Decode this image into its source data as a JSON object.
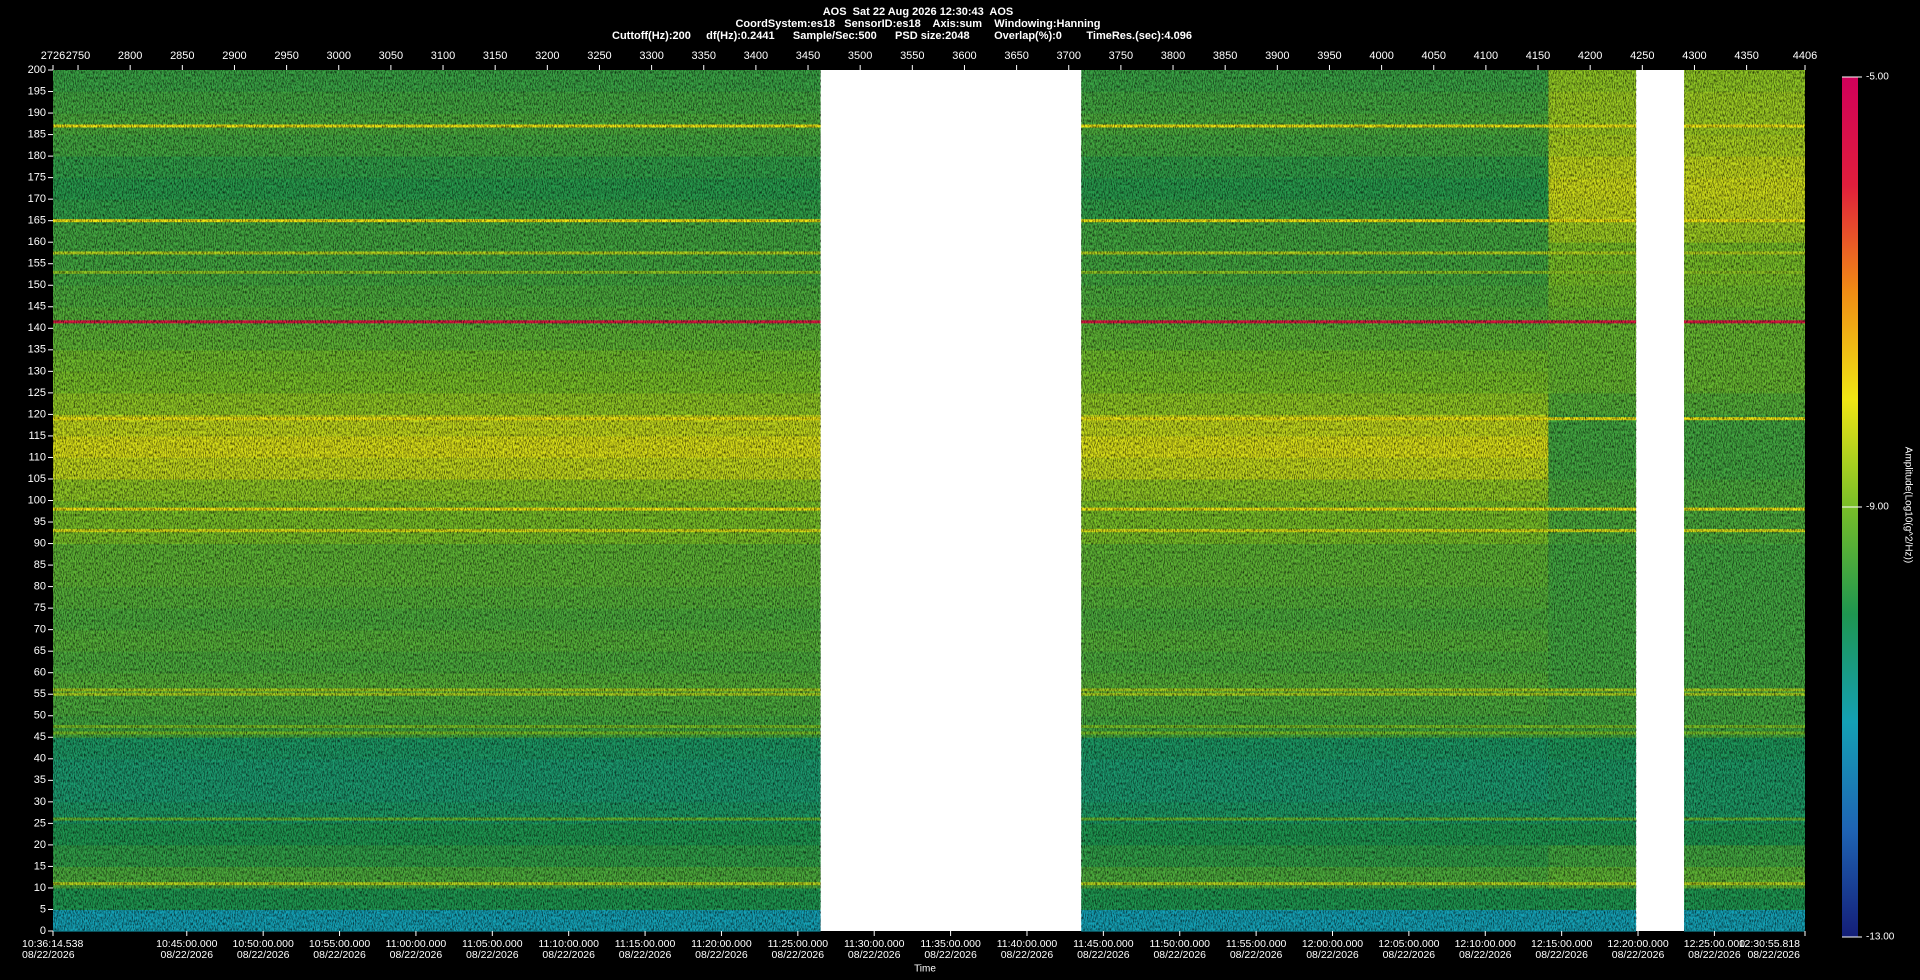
{
  "chart_data": {
    "type": "spectrogram",
    "title": "AOS  Sat 22 Aug 2026 12:30:43  AOS",
    "subtitle": "CoordSystem:es18   SensorID:es18    Axis:sum    Windowing:Hanning",
    "settings_line": "Cuttoff(Hz):200     df(Hz):0.2441      Sample/Sec:500      PSD size:2048        Overlap(%):0        TimeRes.(sec):4.096",
    "xlabel": "Time",
    "zlabel": "Amplitude(Log10(g^2/Hz))",
    "xlim": [
      2726,
      4406
    ],
    "xticks": [
      2726,
      2750,
      2800,
      2850,
      2900,
      2950,
      3000,
      3050,
      3100,
      3150,
      3200,
      3250,
      3300,
      3350,
      3400,
      3450,
      3500,
      3550,
      3600,
      3650,
      3700,
      3750,
      3800,
      3850,
      3900,
      3950,
      4000,
      4050,
      4100,
      4150,
      4200,
      4250,
      4300,
      4350,
      4406
    ],
    "x2lim": [
      "10:36:14.538",
      "12:30:55.818"
    ],
    "x2ticks": [
      {
        "time": "10:36:14.538",
        "date": "08/22/2026"
      },
      {
        "time": "10:45:00.000",
        "date": "08/22/2026"
      },
      {
        "time": "10:50:00.000",
        "date": "08/22/2026"
      },
      {
        "time": "10:55:00.000",
        "date": "08/22/2026"
      },
      {
        "time": "11:00:00.000",
        "date": "08/22/2026"
      },
      {
        "time": "11:05:00.000",
        "date": "08/22/2026"
      },
      {
        "time": "11:10:00.000",
        "date": "08/22/2026"
      },
      {
        "time": "11:15:00.000",
        "date": "08/22/2026"
      },
      {
        "time": "11:20:00.000",
        "date": "08/22/2026"
      },
      {
        "time": "11:25:00.000",
        "date": "08/22/2026"
      },
      {
        "time": "11:30:00.000",
        "date": "08/22/2026"
      },
      {
        "time": "11:35:00.000",
        "date": "08/22/2026"
      },
      {
        "time": "11:40:00.000",
        "date": "08/22/2026"
      },
      {
        "time": "11:45:00.000",
        "date": "08/22/2026"
      },
      {
        "time": "11:50:00.000",
        "date": "08/22/2026"
      },
      {
        "time": "11:55:00.000",
        "date": "08/22/2026"
      },
      {
        "time": "12:00:00.000",
        "date": "08/22/2026"
      },
      {
        "time": "12:05:00.000",
        "date": "08/22/2026"
      },
      {
        "time": "12:10:00.000",
        "date": "08/22/2026"
      },
      {
        "time": "12:15:00.000",
        "date": "08/22/2026"
      },
      {
        "time": "12:20:00.000",
        "date": "08/22/2026"
      },
      {
        "time": "12:25:00.000",
        "date": "08/22/2026"
      },
      {
        "time": "12:30:55.818",
        "date": "08/22/2026"
      }
    ],
    "ylim": [
      0,
      200
    ],
    "yticks": [
      0,
      5,
      10,
      15,
      20,
      25,
      30,
      35,
      40,
      45,
      50,
      55,
      60,
      65,
      70,
      75,
      80,
      85,
      90,
      95,
      100,
      105,
      110,
      115,
      120,
      125,
      130,
      135,
      140,
      145,
      150,
      155,
      160,
      165,
      170,
      175,
      180,
      185,
      190,
      195,
      200
    ],
    "zlim": [
      -13,
      -5
    ],
    "zticks": [
      {
        "value": -5,
        "label": "-5.00"
      },
      {
        "value": -9,
        "label": "-9.00"
      },
      {
        "value": -13,
        "label": "-13.00"
      }
    ],
    "colormap": [
      "#141e78",
      "#1e64b4",
      "#14a0b4",
      "#1e9650",
      "#78be28",
      "#f0e614",
      "#f08c14",
      "#e01e3c",
      "#d0005a"
    ],
    "bin_height": 5,
    "segments": [
      {
        "start": 2726,
        "end": 3462,
        "values": [
          -11,
          -10,
          -9.5,
          -9.8,
          -10,
          -10.2,
          -10.3,
          -10.3,
          -10.2,
          -9.6,
          -9.5,
          -9.4,
          -9.5,
          -9.4,
          -9.5,
          -9.4,
          -9.3,
          -9.3,
          -9,
          -9,
          -8.8,
          -8.4,
          -8.2,
          -8.4,
          -8.8,
          -9,
          -9.1,
          -9.3,
          -9.4,
          -9.5,
          -9.6,
          -9.6,
          -9.6,
          -9.8,
          -9.9,
          -9.8,
          -9.6,
          -9.5,
          -9.6,
          -9.7
        ]
      },
      {
        "start": 3712,
        "end": 4160,
        "values": [
          -11,
          -10,
          -9.5,
          -9.8,
          -10,
          -10.2,
          -10.3,
          -10.3,
          -10.2,
          -9.6,
          -9.5,
          -9.4,
          -9.5,
          -9.4,
          -9.5,
          -9.4,
          -9.3,
          -9.3,
          -9,
          -9,
          -8.8,
          -8.4,
          -8.2,
          -8.4,
          -8.8,
          -9,
          -9.1,
          -9.3,
          -9.4,
          -9.5,
          -9.6,
          -9.6,
          -9.6,
          -9.8,
          -9.9,
          -9.8,
          -9.6,
          -9.5,
          -9.6,
          -9.7
        ]
      },
      {
        "start": 4160,
        "end": 4244,
        "values": [
          -11,
          -10,
          -9.3,
          -9.6,
          -10,
          -10.2,
          -10.2,
          -10.2,
          -10.1,
          -9.6,
          -9.6,
          -9.6,
          -9.6,
          -9.6,
          -9.6,
          -9.6,
          -9.6,
          -9.6,
          -9.5,
          -9.5,
          -9.5,
          -9.6,
          -9.6,
          -9.6,
          -9.4,
          -9.2,
          -9.2,
          -9.2,
          -9.2,
          -9.1,
          -9,
          -9,
          -8.7,
          -8.4,
          -8.3,
          -8.4,
          -8.6,
          -8.7,
          -8.7,
          -8.8
        ]
      },
      {
        "start": 4290,
        "end": 4406,
        "values": [
          -11,
          -10,
          -9.3,
          -9.6,
          -10,
          -10.2,
          -10.2,
          -10.2,
          -10.1,
          -9.6,
          -9.6,
          -9.6,
          -9.6,
          -9.6,
          -9.6,
          -9.6,
          -9.6,
          -9.6,
          -9.5,
          -9.5,
          -9.5,
          -9.6,
          -9.6,
          -9.6,
          -9.4,
          -9.2,
          -9.2,
          -9.2,
          -9.2,
          -9.1,
          -9,
          -9,
          -8.7,
          -8.4,
          -8.3,
          -8.4,
          -8.6,
          -8.7,
          -8.7,
          -8.8
        ]
      }
    ],
    "lines": [
      {
        "freq": 141.5,
        "value": -5.8
      },
      {
        "freq": 187,
        "value": -8
      },
      {
        "freq": 165,
        "value": -8
      },
      {
        "freq": 157.5,
        "value": -8.5
      },
      {
        "freq": 153,
        "value": -8.8
      },
      {
        "freq": 119,
        "value": -8
      },
      {
        "freq": 98,
        "value": -8
      },
      {
        "freq": 93,
        "value": -8.2
      },
      {
        "freq": 56,
        "value": -8.6
      },
      {
        "freq": 55,
        "value": -8.6
      },
      {
        "freq": 47.5,
        "value": -9
      },
      {
        "freq": 46,
        "value": -9
      },
      {
        "freq": 26,
        "value": -9.2
      },
      {
        "freq": 11,
        "value": -8.5
      }
    ]
  }
}
